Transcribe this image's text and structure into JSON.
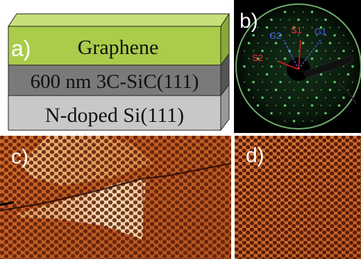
{
  "figure": {
    "panels": [
      {
        "id": "a",
        "label": "a)"
      },
      {
        "id": "b",
        "label": "b)"
      },
      {
        "id": "c",
        "label": "c)"
      },
      {
        "id": "d",
        "label": "d)"
      }
    ],
    "layers": {
      "top": "Graphene",
      "middle": "600 nm 3C-SiC(111)",
      "bottom": "N-doped Si(111)"
    },
    "leed_labels": {
      "g2": "G2",
      "s1": "S1",
      "g1": "G1",
      "s2": "S2"
    },
    "colors": {
      "graphene_layer": "#a9cc4a",
      "sic_layer": "#7a7a7a",
      "si_layer": "#c8c8c8",
      "leed_spot": "#5fd36a",
      "graphene_arrow": "#3a5be0",
      "sic_arrow": "#e02020",
      "stm_base": "#c8642a",
      "stm_hole": "#6a2208",
      "stm_highlight": "#f6e2b8"
    }
  }
}
